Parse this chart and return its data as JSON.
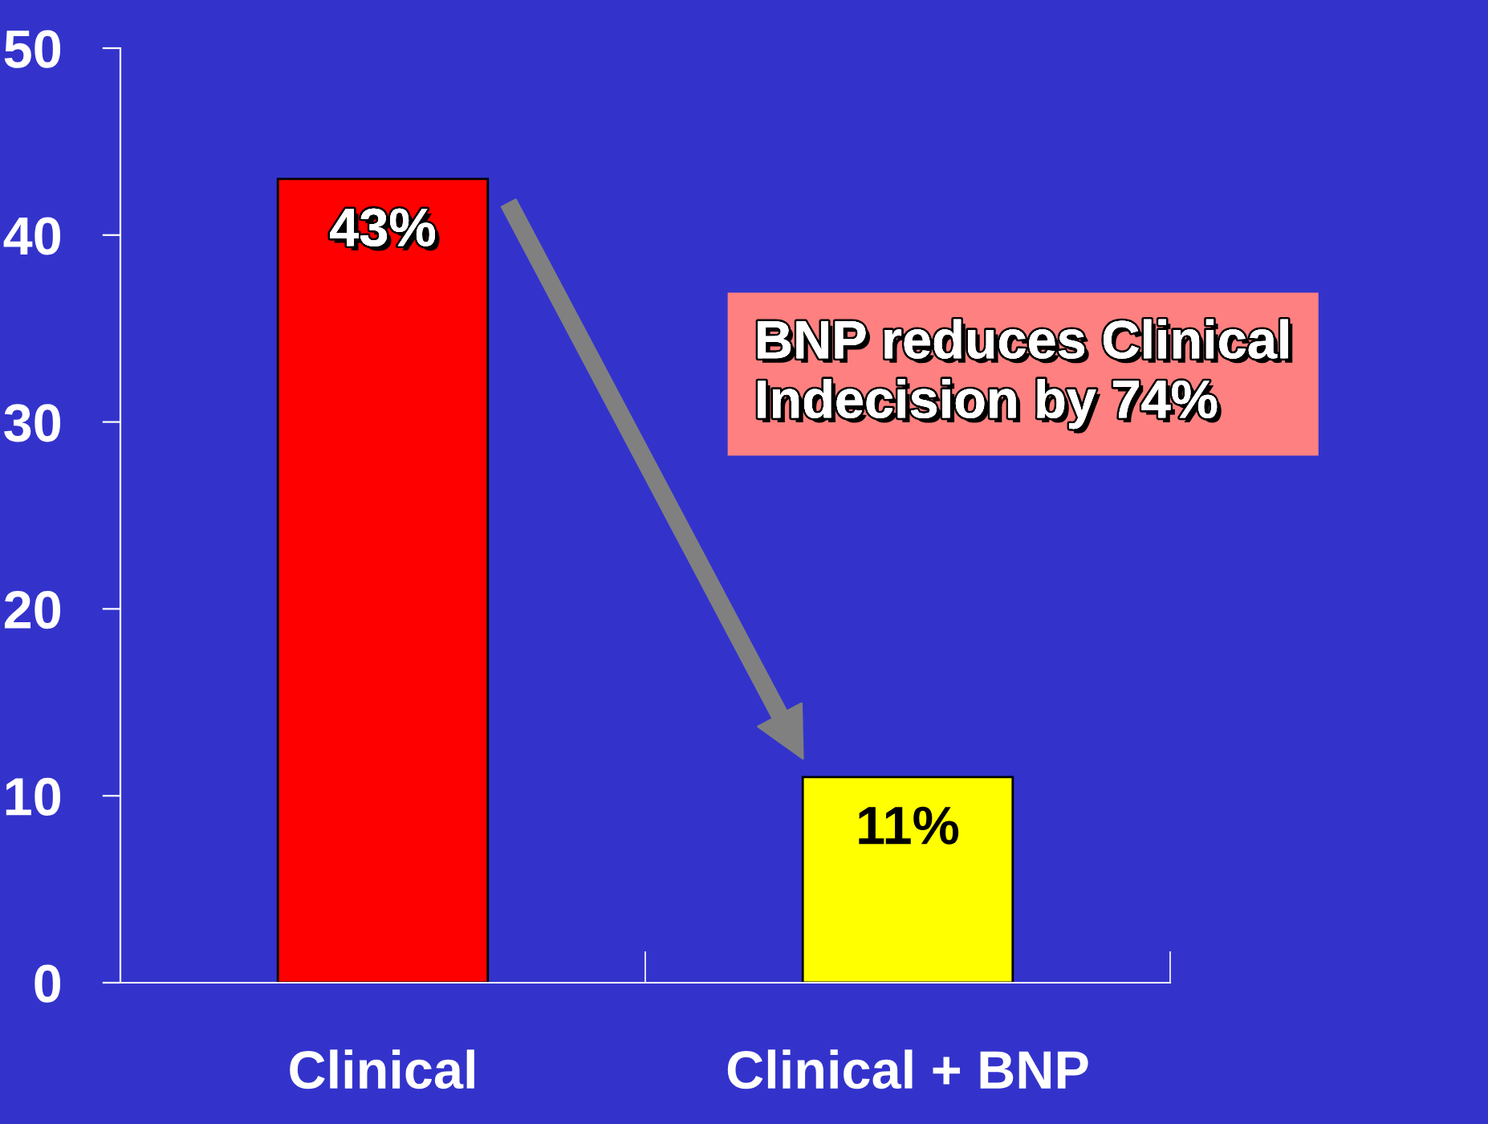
{
  "chart_data": {
    "type": "bar",
    "categories": [
      "Clinical",
      "Clinical + BNP"
    ],
    "values": [
      43,
      11
    ],
    "colors": [
      "#ff0000",
      "#ffff00"
    ],
    "value_labels": [
      "43%",
      "11%"
    ],
    "ylim": [
      0,
      50
    ],
    "yticks": [
      0,
      10,
      20,
      30,
      40,
      50
    ],
    "grid": false,
    "legend": false,
    "annotations": [
      "BNP reduces Clinical\nIndecision by 74%"
    ]
  }
}
